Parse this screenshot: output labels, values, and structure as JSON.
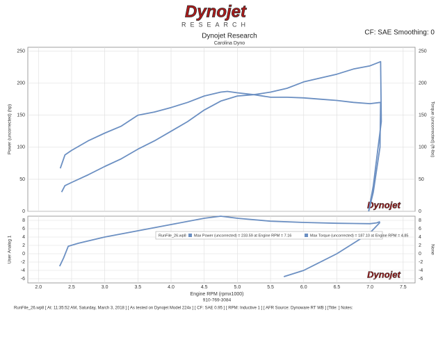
{
  "logo": {
    "name": "Dynojet",
    "sub": "RESEARCH"
  },
  "watermark": "Dynojet",
  "phone": "910-769-3084",
  "footer": "RunFile_26.wp8 [ At: 11:35:52 AM, Saturday, March 3, 2018 ] [ As tested on Dynojet Model 224x ] [ CF: SAE 0.95 ] [ RPM: Inductive 1 ] [ AFR Source: Dynoware RT WB ] [Title: ]  Notes:",
  "chart_data": [
    {
      "type": "line",
      "title": "Dynojet Research",
      "subtitle": "Carolina Dyno",
      "note": "CF: SAE Smoothing: 0",
      "y_label": "Power (uncorrected) (hp)",
      "y2_label": "Torque (uncorrected) (ft-lbs)",
      "xlim": [
        1.84,
        7.68
      ],
      "ylim": [
        0,
        256
      ],
      "y2lim": [
        0,
        256
      ],
      "yticks": [
        0,
        50,
        100,
        150,
        200,
        250
      ],
      "y2ticks": [
        0,
        50,
        100,
        150,
        200,
        250
      ],
      "grid": true,
      "series": [
        {
          "name": "Power (uncorrected)",
          "color": "#6b8fc2",
          "x": [
            2.35,
            2.4,
            2.5,
            2.75,
            3.0,
            3.25,
            3.5,
            3.75,
            4.0,
            4.25,
            4.5,
            4.75,
            5.0,
            5.25,
            5.5,
            5.75,
            6.0,
            6.25,
            6.5,
            6.75,
            7.0,
            7.16,
            7.17,
            7.05,
            6.98
          ],
          "values": [
            30,
            40,
            45,
            57,
            70,
            82,
            97,
            110,
            125,
            140,
            158,
            172,
            180,
            182,
            186,
            192,
            202,
            208,
            214,
            222,
            227,
            233.59,
            140,
            40,
            0
          ]
        },
        {
          "name": "Torque (uncorrected)",
          "color": "#6b8fc2",
          "axis": "y2",
          "x": [
            2.33,
            2.4,
            2.5,
            2.75,
            3.0,
            3.25,
            3.5,
            3.75,
            4.0,
            4.25,
            4.5,
            4.75,
            4.85,
            5.0,
            5.25,
            5.5,
            5.75,
            6.0,
            6.25,
            6.5,
            6.75,
            7.0,
            7.16,
            7.15,
            7.05,
            6.98
          ],
          "values": [
            67,
            88,
            95,
            110,
            122,
            133,
            150,
            155,
            162,
            170,
            180,
            186,
            187.1,
            185,
            182,
            178,
            178,
            177,
            175,
            173,
            170,
            168,
            170,
            100,
            30,
            0
          ]
        }
      ]
    },
    {
      "type": "line",
      "y_label": "User Analog 1",
      "y2_label": "None",
      "x_label": "Engine RPM (rpmx1000)",
      "xlim": [
        1.84,
        7.68
      ],
      "ylim": [
        -7,
        9
      ],
      "yticks": [
        8,
        6,
        4,
        2,
        0,
        -2,
        -4,
        -6
      ],
      "grid": true,
      "xticks": [
        {
          "value": 2,
          "label": "2.0"
        },
        2.5,
        {
          "value": 3,
          "label": "3.0"
        },
        3.5,
        {
          "value": 4,
          "label": "4.0"
        },
        4.5,
        {
          "value": 5,
          "label": "5.0"
        },
        5.5,
        {
          "value": 6,
          "label": "6.0"
        },
        6.5,
        {
          "value": 7,
          "label": "7.0"
        },
        7.5
      ],
      "legend": {
        "file": "RunFile_26.wp8",
        "items": [
          "Max Power (uncorrected) = 233.59 at Engine RPM = 7.16",
          "Max Torque (uncorrected) = 187.10 at Engine RPM = 4.85"
        ]
      },
      "series": [
        {
          "name": "User Analog 1",
          "color": "#6b8fc2",
          "x": [
            2.32,
            2.38,
            2.45,
            2.6,
            3.0,
            3.5,
            4.0,
            4.5,
            4.75,
            5.0,
            5.5,
            6.0,
            6.5,
            7.0,
            7.1,
            7.15,
            null,
            5.7,
            6.0,
            6.5,
            7.0,
            7.15
          ],
          "values": [
            -3,
            -1,
            1.8,
            2.5,
            4,
            5.5,
            7,
            8.5,
            9,
            8.5,
            7.8,
            7.5,
            7.3,
            7.2,
            7.4,
            7.7,
            null,
            -5.5,
            -4,
            0,
            5,
            7.5
          ]
        }
      ]
    }
  ]
}
